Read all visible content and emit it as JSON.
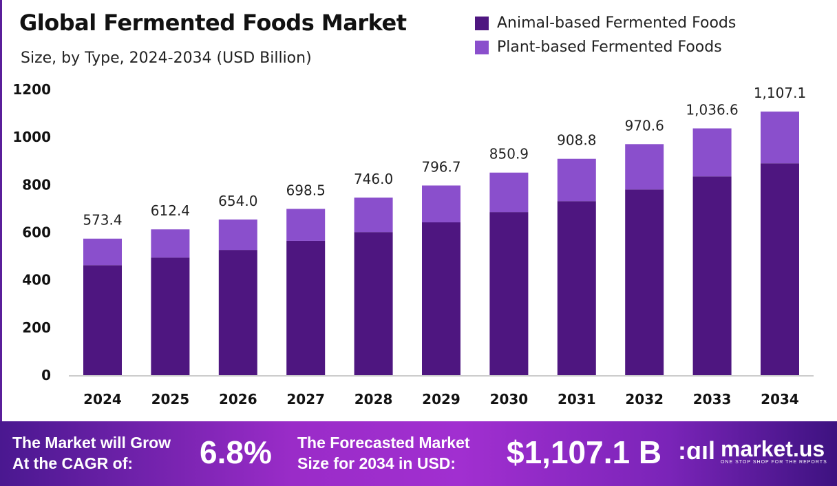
{
  "chart_data": {
    "type": "bar",
    "stacked": true,
    "title": "Global Fermented Foods Market",
    "subtitle": "Size, by Type, 2024-2034 (USD Billion)",
    "categories": [
      "2024",
      "2025",
      "2026",
      "2027",
      "2028",
      "2029",
      "2030",
      "2031",
      "2032",
      "2033",
      "2034"
    ],
    "series": [
      {
        "name": "Animal-based Fermented Foods",
        "color": "#4e1680",
        "values": [
          462,
          494,
          526,
          564,
          601,
          642,
          685,
          731,
          780,
          835,
          890
        ]
      },
      {
        "name": "Plant-based Fermented Foods",
        "color": "#8a4fcc",
        "values": [
          111.4,
          118.4,
          128.0,
          134.5,
          145.0,
          154.7,
          165.9,
          177.8,
          190.6,
          201.6,
          217.1
        ]
      }
    ],
    "totals": [
      "573.4",
      "612.4",
      "654.0",
      "698.5",
      "746.0",
      "796.7",
      "850.9",
      "908.8",
      "970.6",
      "1,036.6",
      "1,107.1"
    ],
    "yticks": [
      "0",
      "200",
      "400",
      "600",
      "800",
      "1000",
      "1200"
    ],
    "ylim": [
      0,
      1200
    ],
    "grid": false,
    "legend": "top-right"
  },
  "footer": {
    "cagr_text_1": "The Market will Grow",
    "cagr_text_2": "At the CAGR of:",
    "cagr_value": "6.8%",
    "forecast_text_1": "The Forecasted Market",
    "forecast_text_2": "Size for 2034 in USD:",
    "forecast_value": "$1,107.1 B",
    "brand": "market.us",
    "tagline": "ONE STOP SHOP FOR THE REPORTS"
  }
}
